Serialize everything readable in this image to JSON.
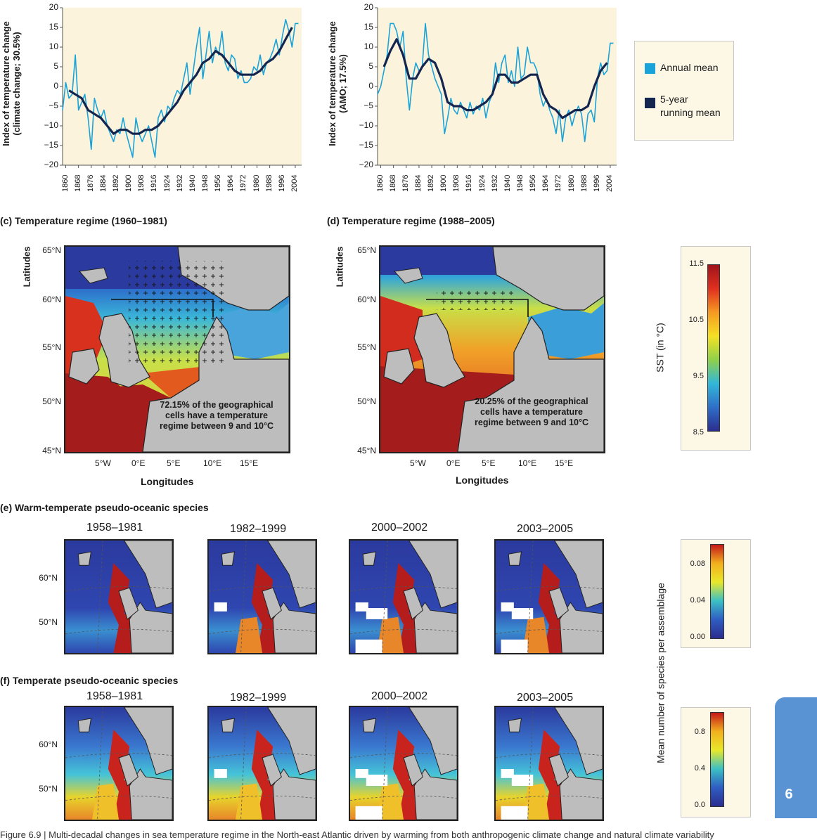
{
  "chart_data": [
    {
      "type": "line",
      "ylabel": "Index of temperature change (climate change; 30.5%)",
      "ylabel_lines": [
        "Index of temperature change",
        "(climate change; 30.5%)"
      ],
      "ylim": [
        -20,
        20
      ],
      "yticks": [
        20,
        15,
        10,
        5,
        0,
        -5,
        -10,
        -15,
        -20
      ],
      "ytick_labels": [
        "20",
        "15",
        "10",
        "5",
        "0",
        "−5",
        "−10",
        "−15",
        "−20"
      ],
      "xlim": [
        1858,
        2008
      ],
      "xticks": [
        "1860",
        "1868",
        "1876",
        "1884",
        "1892",
        "1900",
        "1908",
        "1916",
        "1924",
        "1932",
        "1940",
        "1948",
        "1956",
        "1964",
        "1972",
        "1980",
        "1988",
        "1996",
        "2004"
      ],
      "series": [
        {
          "name": "Annual mean",
          "color": "#1aa3d8",
          "x": [
            1858,
            1860,
            1862,
            1864,
            1866,
            1868,
            1870,
            1872,
            1874,
            1876,
            1878,
            1880,
            1882,
            1884,
            1886,
            1888,
            1890,
            1892,
            1894,
            1896,
            1898,
            1900,
            1902,
            1904,
            1906,
            1908,
            1910,
            1912,
            1914,
            1916,
            1918,
            1920,
            1922,
            1924,
            1926,
            1928,
            1930,
            1932,
            1934,
            1936,
            1938,
            1940,
            1942,
            1944,
            1946,
            1948,
            1950,
            1952,
            1954,
            1956,
            1958,
            1960,
            1962,
            1964,
            1966,
            1968,
            1970,
            1972,
            1974,
            1976,
            1978,
            1980,
            1982,
            1984,
            1986,
            1988,
            1990,
            1992,
            1994,
            1996,
            1998,
            2000,
            2002,
            2004,
            2006
          ],
          "y": [
            -6,
            1,
            -3,
            -2,
            8,
            -6,
            -4,
            -2,
            -8,
            -16,
            -3,
            -6,
            -8,
            -6,
            -10,
            -12,
            -14,
            -11,
            -12,
            -8,
            -12,
            -15,
            -18,
            -8,
            -12,
            -14,
            -12,
            -10,
            -14,
            -18,
            -8,
            -6,
            -9,
            -5,
            -6,
            -3,
            -1,
            -2,
            2,
            6,
            -2,
            4,
            10,
            15,
            2,
            8,
            14,
            6,
            10,
            8,
            14,
            6,
            4,
            8,
            7,
            2,
            4,
            1,
            1,
            2,
            5,
            4,
            8,
            3,
            6,
            7,
            9,
            12,
            8,
            13,
            17,
            14,
            10,
            16,
            16
          ]
        },
        {
          "name": "5-year running mean",
          "color": "#14264f",
          "x": [
            1862,
            1866,
            1870,
            1874,
            1878,
            1882,
            1886,
            1890,
            1894,
            1898,
            1902,
            1906,
            1910,
            1914,
            1918,
            1922,
            1926,
            1930,
            1934,
            1938,
            1942,
            1946,
            1950,
            1954,
            1958,
            1962,
            1966,
            1970,
            1974,
            1978,
            1982,
            1986,
            1990,
            1994,
            1998,
            2002
          ],
          "y": [
            -1,
            -2,
            -3,
            -6,
            -7,
            -8,
            -10,
            -12,
            -11,
            -11,
            -12,
            -12,
            -11,
            -11,
            -10,
            -8,
            -6,
            -4,
            -1,
            1,
            3,
            6,
            7,
            9,
            8,
            6,
            4,
            3,
            3,
            3,
            4,
            6,
            7,
            9,
            12,
            15
          ]
        }
      ]
    },
    {
      "type": "line",
      "ylabel": "Index of temperature change (AMO; 17.5%)",
      "ylabel_lines": [
        "Index of temperature change",
        "(AMO; 17.5%)"
      ],
      "ylim": [
        -20,
        20
      ],
      "yticks": [
        20,
        15,
        10,
        5,
        0,
        -5,
        -10,
        -15,
        -20
      ],
      "ytick_labels": [
        "20",
        "15",
        "10",
        "5",
        "0",
        "−5",
        "−10",
        "−15",
        "−20"
      ],
      "xlim": [
        1858,
        2008
      ],
      "xticks": [
        "1860",
        "1868",
        "1876",
        "1884",
        "1892",
        "1900",
        "1908",
        "1916",
        "1924",
        "1932",
        "1940",
        "1948",
        "1956",
        "1964",
        "1972",
        "1980",
        "1988",
        "1996",
        "2004"
      ],
      "series": [
        {
          "name": "Annual mean",
          "color": "#1aa3d8",
          "x": [
            1858,
            1860,
            1862,
            1864,
            1866,
            1868,
            1870,
            1872,
            1874,
            1876,
            1878,
            1880,
            1882,
            1884,
            1886,
            1888,
            1890,
            1892,
            1894,
            1896,
            1898,
            1900,
            1902,
            1904,
            1906,
            1908,
            1910,
            1912,
            1914,
            1916,
            1918,
            1920,
            1922,
            1924,
            1926,
            1928,
            1930,
            1932,
            1934,
            1936,
            1938,
            1940,
            1942,
            1944,
            1946,
            1948,
            1950,
            1952,
            1954,
            1956,
            1958,
            1960,
            1962,
            1964,
            1966,
            1968,
            1970,
            1972,
            1974,
            1976,
            1978,
            1980,
            1982,
            1984,
            1986,
            1988,
            1990,
            1992,
            1994,
            1996,
            1998,
            2000,
            2002,
            2004,
            2006
          ],
          "y": [
            -2,
            0,
            4,
            8,
            16,
            16,
            14,
            10,
            14,
            2,
            -6,
            2,
            6,
            4,
            5,
            16,
            8,
            5,
            2,
            0,
            -2,
            -12,
            -8,
            -3,
            -6,
            -7,
            -4,
            -6,
            -8,
            -4,
            -7,
            -5,
            -6,
            -3,
            -8,
            -4,
            -2,
            6,
            1,
            6,
            8,
            1,
            4,
            0,
            10,
            2,
            3,
            10,
            6,
            6,
            4,
            -2,
            -5,
            -3,
            -6,
            -8,
            -12,
            -6,
            -14,
            -8,
            -6,
            -10,
            -7,
            -5,
            -7,
            -14,
            -7,
            -6,
            -9,
            2,
            6,
            3,
            4,
            11,
            11
          ]
        },
        {
          "name": "5-year running mean",
          "color": "#14264f",
          "x": [
            1862,
            1866,
            1870,
            1874,
            1878,
            1882,
            1886,
            1890,
            1894,
            1898,
            1902,
            1906,
            1910,
            1914,
            1918,
            1922,
            1926,
            1930,
            1934,
            1938,
            1942,
            1946,
            1950,
            1954,
            1958,
            1962,
            1966,
            1970,
            1974,
            1978,
            1982,
            1986,
            1990,
            1994,
            1998,
            2002
          ],
          "y": [
            5,
            9,
            12,
            8,
            2,
            2,
            5,
            7,
            6,
            2,
            -4,
            -5,
            -5,
            -6,
            -6,
            -5,
            -4,
            -2,
            3,
            3,
            1,
            1,
            2,
            3,
            3,
            -2,
            -5,
            -6,
            -8,
            -7,
            -6,
            -6,
            -5,
            0,
            4,
            6
          ]
        }
      ]
    }
  ],
  "legend": {
    "annual": "Annual mean",
    "running_line1": "5-year",
    "running_line2": "running mean",
    "annual_color": "#1aa3d8",
    "running_color": "#14264f"
  },
  "panel_c": {
    "title": "(c) Temperature regime (1960–1981)",
    "note_lines": [
      "72.15% of the geographical",
      "cells have a temperature",
      "regime between 9 and 10°C"
    ]
  },
  "panel_d": {
    "title": "(d) Temperature regime (1988–2005)",
    "note_lines": [
      "20.25% of the geographical",
      "cells have a temperature",
      "regime between 9 and 10°C"
    ]
  },
  "map_axes": {
    "ylabel": "Latitudes",
    "xlabel": "Longitudes",
    "lat_labels": [
      "65°N",
      "60°N",
      "55°N",
      "50°N",
      "45°N"
    ],
    "lon_labels": [
      "5°W",
      "0°E",
      "5°E",
      "10°E",
      "15°E"
    ]
  },
  "sst_colorbar": {
    "label": "SST (in °C)",
    "ticks": [
      "11.5",
      "10.5",
      "9.5",
      "8.5"
    ]
  },
  "panel_e": {
    "title": "(e) Warm-temperate pseudo-oceanic species"
  },
  "panel_f": {
    "title": "(f) Temperate pseudo-oceanic species"
  },
  "periods": [
    "1958–1981",
    "1982–1999",
    "2000–2002",
    "2003–2005"
  ],
  "small_map_lats": [
    "60°N",
    "50°N"
  ],
  "species_colorbar_label": "Mean number of species per assemblage",
  "cb_e_ticks": [
    "0.08",
    "0.04",
    "0.00"
  ],
  "cb_f_ticks": [
    "0.8",
    "0.4",
    "0.0"
  ],
  "chapter_tab": "6",
  "caption": "Figure 6.9 | Multi-decadal changes in sea temperature regime in the North-east Atlantic driven by warming from both anthropogenic climate change and natural climate variability"
}
